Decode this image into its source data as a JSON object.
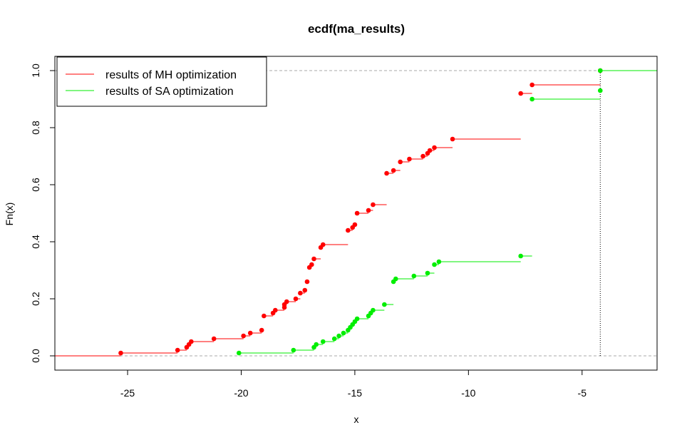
{
  "chart_data": {
    "type": "line",
    "step": true,
    "title": "ecdf(ma_results)",
    "xlabel": "x",
    "ylabel": "Fn(x)",
    "xlim": [
      -28.2,
      -1.7
    ],
    "ylim": [
      -0.05,
      1.05
    ],
    "xticks": [
      -25,
      -20,
      -15,
      -10,
      -5
    ],
    "xtick_labels": [
      "-25",
      "-20",
      "-15",
      "-10",
      "-5"
    ],
    "yticks": [
      0.0,
      0.2,
      0.4,
      0.6,
      0.8,
      1.0
    ],
    "ytick_labels": [
      "0.0",
      "0.2",
      "0.4",
      "0.6",
      "0.8",
      "1.0"
    ],
    "hlines": [
      0,
      1
    ],
    "vline": -4.2,
    "legend": {
      "position": "top-left"
    },
    "series": [
      {
        "name": "results of MH optimization",
        "color": "#ff0000",
        "x": [
          -25.3,
          -22.8,
          -22.4,
          -22.3,
          -22.2,
          -21.2,
          -19.9,
          -19.6,
          -19.1,
          -19.0,
          -18.6,
          -18.5,
          -18.1,
          -18.1,
          -18.0,
          -17.6,
          -17.4,
          -17.2,
          -17.1,
          -17.0,
          -16.9,
          -16.8,
          -16.5,
          -16.4,
          -15.3,
          -15.1,
          -15.0,
          -14.9,
          -14.4,
          -14.2,
          -13.6,
          -13.3,
          -13.0,
          -12.6,
          -12.0,
          -11.8,
          -11.7,
          -11.5,
          -10.7,
          -7.7,
          -7.2,
          -4.2
        ],
        "y": [
          0.01,
          0.02,
          0.03,
          0.04,
          0.05,
          0.06,
          0.07,
          0.08,
          0.09,
          0.14,
          0.15,
          0.16,
          0.17,
          0.18,
          0.19,
          0.2,
          0.22,
          0.23,
          0.26,
          0.31,
          0.32,
          0.34,
          0.38,
          0.39,
          0.44,
          0.45,
          0.46,
          0.5,
          0.51,
          0.53,
          0.64,
          0.65,
          0.68,
          0.69,
          0.7,
          0.71,
          0.72,
          0.73,
          0.76,
          0.92,
          0.95,
          1.0
        ],
        "end_x": -7.1
      },
      {
        "name": "results of SA optimization",
        "color": "#00ee00",
        "x": [
          -20.1,
          -17.7,
          -16.8,
          -16.7,
          -16.4,
          -15.9,
          -15.7,
          -15.5,
          -15.3,
          -15.2,
          -15.1,
          -15.0,
          -14.9,
          -14.4,
          -14.3,
          -14.2,
          -13.7,
          -13.3,
          -13.2,
          -12.4,
          -11.8,
          -11.5,
          -11.3,
          -7.7,
          -7.2,
          -4.2,
          -4.2
        ],
        "y": [
          0.01,
          0.02,
          0.03,
          0.04,
          0.05,
          0.06,
          0.07,
          0.08,
          0.09,
          0.1,
          0.11,
          0.12,
          0.13,
          0.14,
          0.15,
          0.16,
          0.18,
          0.26,
          0.27,
          0.28,
          0.29,
          0.32,
          0.33,
          0.35,
          0.9,
          0.93,
          1.0
        ],
        "end_x": -1.7
      }
    ]
  }
}
